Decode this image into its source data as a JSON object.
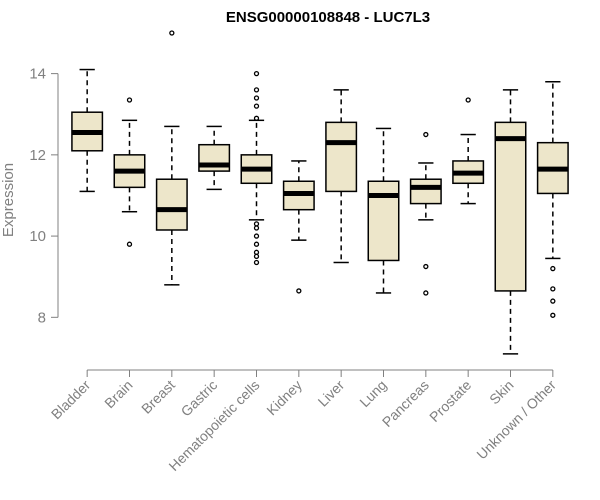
{
  "chart_data": {
    "type": "boxplot",
    "title": "ENSG00000108848 - LUC7L3",
    "ylabel": "Expression",
    "xlabel": "",
    "ylim": [
      6.9,
      15.0
    ],
    "yticks": [
      8,
      10,
      12,
      14
    ],
    "box_color": "#ede6ca",
    "categories": [
      "Bladder",
      "Brain",
      "Breast",
      "Gastric",
      "Hematopoietic cells",
      "Kidney",
      "Liver",
      "Lung",
      "Pancreas",
      "Prostate",
      "Skin",
      "Unknown / Other"
    ],
    "boxes": [
      {
        "min": 11.1,
        "q1": 12.1,
        "median": 12.55,
        "q3": 13.05,
        "max": 14.1,
        "outliers": []
      },
      {
        "min": 10.6,
        "q1": 11.2,
        "median": 11.6,
        "q3": 12.0,
        "max": 12.85,
        "outliers": [
          13.35,
          9.8
        ]
      },
      {
        "min": 8.8,
        "q1": 10.15,
        "median": 10.65,
        "q3": 11.4,
        "max": 12.7,
        "outliers": [
          15.0
        ]
      },
      {
        "min": 11.15,
        "q1": 11.6,
        "median": 11.75,
        "q3": 12.25,
        "max": 12.7,
        "outliers": []
      },
      {
        "min": 10.4,
        "q1": 11.3,
        "median": 11.65,
        "q3": 12.0,
        "max": 12.85,
        "outliers": [
          14.0,
          13.6,
          13.4,
          13.2,
          12.9,
          10.3,
          10.2,
          10.0,
          9.8,
          9.6,
          9.5,
          9.35
        ]
      },
      {
        "min": 9.9,
        "q1": 10.65,
        "median": 11.05,
        "q3": 11.35,
        "max": 11.85,
        "outliers": [
          8.65
        ]
      },
      {
        "min": 9.35,
        "q1": 11.1,
        "median": 12.3,
        "q3": 12.8,
        "max": 13.6,
        "outliers": []
      },
      {
        "min": 8.6,
        "q1": 9.4,
        "median": 11.0,
        "q3": 11.35,
        "max": 12.65,
        "outliers": []
      },
      {
        "min": 10.4,
        "q1": 10.8,
        "median": 11.2,
        "q3": 11.4,
        "max": 11.8,
        "outliers": [
          12.5,
          9.25,
          8.6
        ]
      },
      {
        "min": 10.8,
        "q1": 11.3,
        "median": 11.55,
        "q3": 11.85,
        "max": 12.5,
        "outliers": [
          13.35
        ]
      },
      {
        "min": 7.1,
        "q1": 8.65,
        "median": 12.4,
        "q3": 12.8,
        "max": 13.6,
        "outliers": []
      },
      {
        "min": 9.45,
        "q1": 11.05,
        "median": 11.65,
        "q3": 12.3,
        "max": 13.8,
        "outliers": [
          9.2,
          8.7,
          8.4,
          8.05
        ]
      }
    ]
  }
}
